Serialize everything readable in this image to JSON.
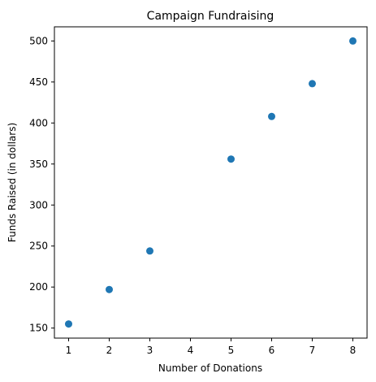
{
  "chart_data": {
    "type": "scatter",
    "title": "Campaign Fundraising",
    "xlabel": "Number of Donations",
    "ylabel": "Funds Raised (in dollars)",
    "x": [
      1,
      2,
      3,
      5,
      6,
      7,
      8
    ],
    "y": [
      155,
      197,
      244,
      356,
      408,
      448,
      500
    ],
    "xlim": [
      0.65,
      8.35
    ],
    "ylim": [
      137.75,
      517.25
    ],
    "xticks": [
      1,
      2,
      3,
      4,
      5,
      6,
      7,
      8
    ],
    "yticks": [
      150,
      200,
      250,
      300,
      350,
      400,
      450,
      500
    ],
    "marker_color": "#1f77b4",
    "grid": false,
    "legend": "none"
  }
}
